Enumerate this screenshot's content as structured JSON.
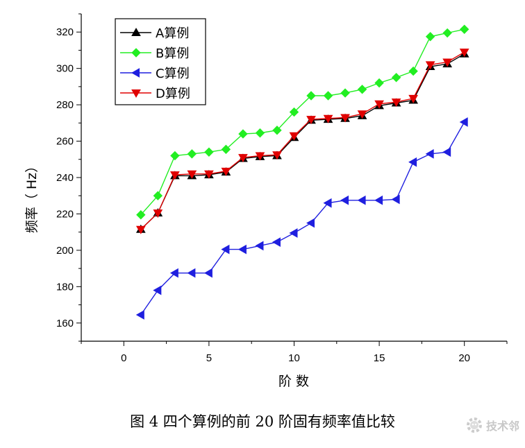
{
  "caption": "图 4  四个算例的前 20 阶固有频率值比较",
  "watermark": "技术邻",
  "chart_data": {
    "type": "line",
    "xlabel": "阶  数",
    "ylabel": "频率（ Hz）",
    "xlim": [
      -2.5,
      22.5
    ],
    "ylim": [
      150,
      330
    ],
    "xticks": [
      0,
      5,
      10,
      15,
      20
    ],
    "yticks": [
      160,
      180,
      200,
      220,
      240,
      260,
      280,
      300,
      320
    ],
    "legend_position": "top-left",
    "grid": false,
    "x": [
      1,
      2,
      3,
      4,
      5,
      6,
      7,
      8,
      9,
      10,
      11,
      12,
      13,
      14,
      15,
      16,
      17,
      18,
      19,
      20
    ],
    "series": [
      {
        "name": "A算例",
        "color": "#000000",
        "marker": "triangle-up",
        "values": [
          211.5,
          220.5,
          241,
          241,
          241.5,
          243,
          250.5,
          251.5,
          252,
          262,
          271.5,
          272,
          272.5,
          274,
          279.5,
          281,
          282.5,
          301,
          302.5,
          308
        ]
      },
      {
        "name": "B算例",
        "color": "#22ee22",
        "marker": "diamond",
        "values": [
          219.5,
          230,
          252,
          253,
          254,
          255.5,
          264,
          264.5,
          266,
          276,
          285,
          285,
          286.5,
          288.5,
          292,
          295,
          298.5,
          317.5,
          319.5,
          321.5
        ]
      },
      {
        "name": "C算例",
        "color": "#1f1fdf",
        "marker": "triangle-left",
        "values": [
          164.5,
          178,
          187.5,
          187.5,
          187.5,
          200.5,
          200.5,
          202.5,
          204.5,
          209.5,
          215,
          226,
          227.5,
          227.5,
          227.5,
          228,
          248.5,
          253,
          254,
          270.5
        ]
      },
      {
        "name": "D算例",
        "color": "#e00000",
        "marker": "triangle-down",
        "values": [
          211.5,
          220.5,
          241.5,
          242,
          242,
          243.5,
          251,
          252,
          252.5,
          263,
          272,
          272.5,
          273,
          275,
          280.5,
          281.5,
          283.5,
          302,
          303.5,
          309
        ]
      }
    ]
  }
}
